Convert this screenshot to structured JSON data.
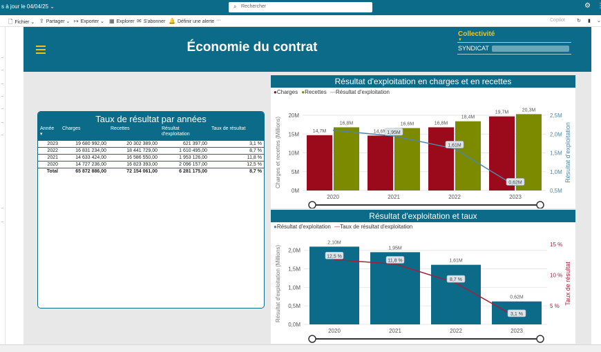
{
  "topbar": {
    "title": "s à jour le 04/04/25",
    "title_chevron": "⌄",
    "search_placeholder": "Rechercher",
    "icons": [
      "copilot-icon",
      "more-icon"
    ]
  },
  "toolbar": {
    "items": [
      {
        "label": "Fichier",
        "icon": "file-icon",
        "chevron": "⌄"
      },
      {
        "label": "Partager",
        "icon": "share-icon",
        "chevron": "⌄"
      },
      {
        "label": "Exporter",
        "icon": "export-icon",
        "chevron": "⌄"
      },
      {
        "label": "Explorer",
        "icon": "explore-icon"
      },
      {
        "label": "S'abonner",
        "icon": "subscribe-icon"
      },
      {
        "label": "Définir une alerte",
        "icon": "bell-icon"
      }
    ],
    "more": "···",
    "copilot": "Copilot"
  },
  "header": {
    "title": "Économie du contrat",
    "filter_label": "Collectivité",
    "filter_value": "SYNDICAT"
  },
  "colors": {
    "teal": "#0b6b88",
    "charges": "#9b0a1a",
    "recettes": "#7c8a00",
    "line_result": "#4f86a8",
    "line_taux": "#a3203a",
    "accent": "#f0c419"
  },
  "table": {
    "title": "Taux de résultat par années",
    "headers": [
      "Année",
      "Charges",
      "Recettes",
      "Résultat d'exploitation",
      "Taux de résultat"
    ],
    "rows": [
      [
        "2023",
        "19 680 992,00",
        "20 302 389,00",
        "621 397,00",
        "3,1 %"
      ],
      [
        "2022",
        "16 831 234,00",
        "18 441 729,00",
        "1 610 495,00",
        "8,7 %"
      ],
      [
        "2021",
        "14 633 424,00",
        "16 586 550,00",
        "1 953 126,00",
        "11,8 %"
      ],
      [
        "2020",
        "14 727 236,00",
        "16 823 393,00",
        "2 096 157,00",
        "12,5 %"
      ]
    ],
    "total": [
      "Total",
      "65 872 886,00",
      "72 154 061,00",
      "6 281 175,00",
      "8,7 %"
    ]
  },
  "chart_data": [
    {
      "type": "bar",
      "title": "Résultat d'exploitation en charges et en recettes",
      "categories": [
        "2020",
        "2021",
        "2022",
        "2023"
      ],
      "series": [
        {
          "name": "Charges",
          "values": [
            14.7,
            14.6,
            16.8,
            19.7
          ],
          "labels": [
            "14,7M",
            "14,6M",
            "16,8M",
            "19,7M"
          ],
          "color": "#9b0a1a"
        },
        {
          "name": "Recettes",
          "values": [
            16.8,
            16.6,
            18.4,
            20.3
          ],
          "labels": [
            "16,8M",
            "16,6M",
            "18,4M",
            "20,3M"
          ],
          "color": "#7c8a00"
        },
        {
          "name": "Résultat d'exploitation",
          "type": "line",
          "axis": "right",
          "values": [
            2.1,
            1.95,
            1.61,
            0.62
          ],
          "labels": [
            "",
            "1,95M",
            "1,61M",
            "0,62M"
          ],
          "color": "#4f86a8"
        }
      ],
      "ylabel": "Charges et recettes (Millions)",
      "ylim": [
        0,
        20
      ],
      "yticks": [
        "0M",
        "5M",
        "10M",
        "15M",
        "20M"
      ],
      "y2label": "Résultat d'exploitation",
      "y2lim": [
        0.5,
        2.5
      ],
      "y2ticks": [
        "0,5M",
        "1,0M",
        "1,5M",
        "2,0M",
        "2,5M"
      ],
      "legend": "top-left",
      "grid": true
    },
    {
      "type": "bar",
      "title": "Résultat d'exploitation et taux",
      "categories": [
        "2020",
        "2021",
        "2022",
        "2023"
      ],
      "series": [
        {
          "name": "Résultat d'exploitation",
          "values": [
            2.1,
            1.95,
            1.61,
            0.62
          ],
          "labels": [
            "2,10M",
            "1,95M",
            "1,61M",
            "0,62M"
          ],
          "color": "#0b6b88"
        },
        {
          "name": "Taux de résultat d'exploitation",
          "type": "line",
          "axis": "right",
          "values": [
            12.5,
            11.8,
            8.7,
            3.1
          ],
          "labels": [
            "12,5 %",
            "11,8 %",
            "8,7 %",
            "3,1 %"
          ],
          "color": "#a3203a"
        }
      ],
      "ylabel": "Résultat d'exploitation (Millions)",
      "ylim": [
        0,
        2.2
      ],
      "yticks": [
        "0,0M",
        "0,5M",
        "1,0M",
        "1,5M",
        "2,0M"
      ],
      "y2label": "Taux de résultat",
      "y2ticks": [
        "5 %",
        "10 %",
        "15 %"
      ],
      "legend": "top-left",
      "grid": true
    }
  ]
}
